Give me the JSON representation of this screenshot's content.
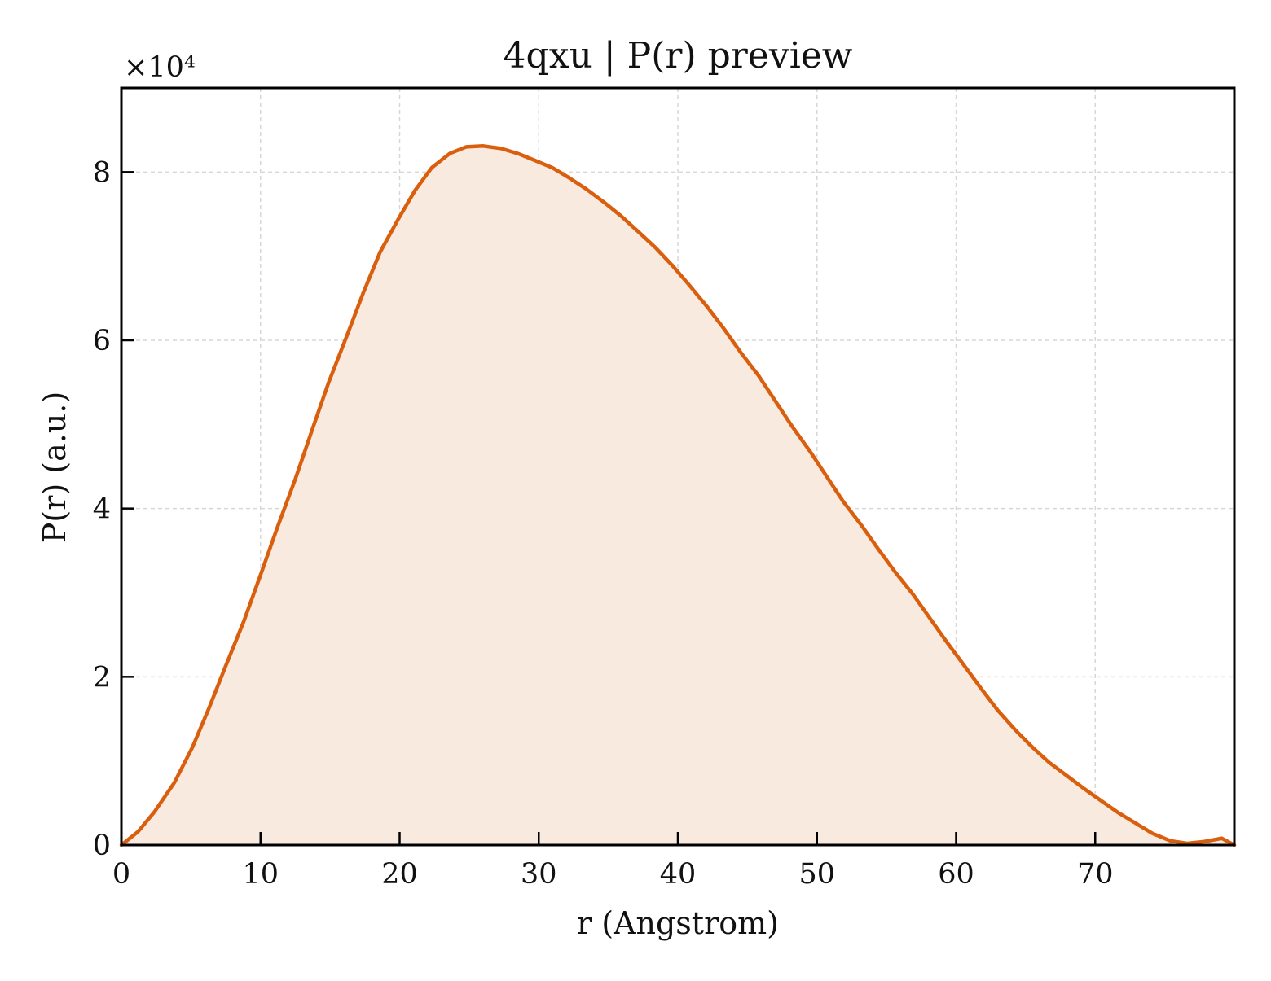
{
  "chart_data": {
    "type": "area",
    "title": "4qxu | P(r) preview",
    "xlabel": "r (Angstrom)",
    "ylabel": "P(r) (a.u.)",
    "y_multiplier_label": "×10⁴",
    "xlim": [
      0,
      80
    ],
    "ylim": [
      0,
      9
    ],
    "x_ticks": [
      0,
      10,
      20,
      30,
      40,
      50,
      60,
      70
    ],
    "y_ticks": [
      0,
      2,
      4,
      6,
      8
    ],
    "x_tick_labels": [
      "0",
      "10",
      "20",
      "30",
      "40",
      "50",
      "60",
      "70"
    ],
    "y_tick_labels": [
      "0",
      "2",
      "4",
      "6",
      "8"
    ],
    "grid": true,
    "legend": "none",
    "colors": {
      "line": "#d95f0e",
      "fill": "#f9eadf",
      "grid": "#d7d7d7",
      "axes": "#000000"
    },
    "x": [
      0.0,
      1.2,
      2.4,
      3.8,
      5.1,
      6.3,
      7.5,
      8.8,
      10.0,
      11.2,
      12.5,
      13.7,
      14.9,
      16.2,
      17.4,
      18.6,
      19.9,
      21.1,
      22.3,
      23.6,
      24.8,
      26.0,
      27.3,
      28.5,
      29.7,
      31.0,
      32.2,
      33.4,
      34.7,
      35.9,
      37.1,
      38.4,
      39.6,
      40.8,
      42.1,
      43.3,
      44.5,
      45.8,
      47.0,
      48.2,
      49.5,
      50.7,
      51.9,
      53.2,
      54.4,
      55.6,
      56.9,
      58.1,
      59.3,
      60.6,
      61.8,
      63.0,
      64.3,
      65.5,
      66.7,
      68.0,
      69.2,
      70.4,
      71.7,
      72.9,
      74.1,
      75.4,
      76.6,
      77.8,
      79.1,
      80.0
    ],
    "y": [
      0.0,
      0.16,
      0.4,
      0.74,
      1.16,
      1.63,
      2.13,
      2.66,
      3.21,
      3.77,
      4.35,
      4.93,
      5.5,
      6.05,
      6.57,
      7.05,
      7.44,
      7.78,
      8.05,
      8.22,
      8.3,
      8.31,
      8.28,
      8.22,
      8.14,
      8.05,
      7.93,
      7.8,
      7.64,
      7.48,
      7.3,
      7.1,
      6.89,
      6.66,
      6.4,
      6.14,
      5.86,
      5.58,
      5.28,
      4.98,
      4.68,
      4.38,
      4.08,
      3.8,
      3.52,
      3.25,
      2.98,
      2.7,
      2.42,
      2.13,
      1.86,
      1.6,
      1.36,
      1.16,
      0.98,
      0.82,
      0.67,
      0.53,
      0.38,
      0.26,
      0.14,
      0.05,
      0.02,
      0.04,
      0.08,
      0.0
    ]
  }
}
